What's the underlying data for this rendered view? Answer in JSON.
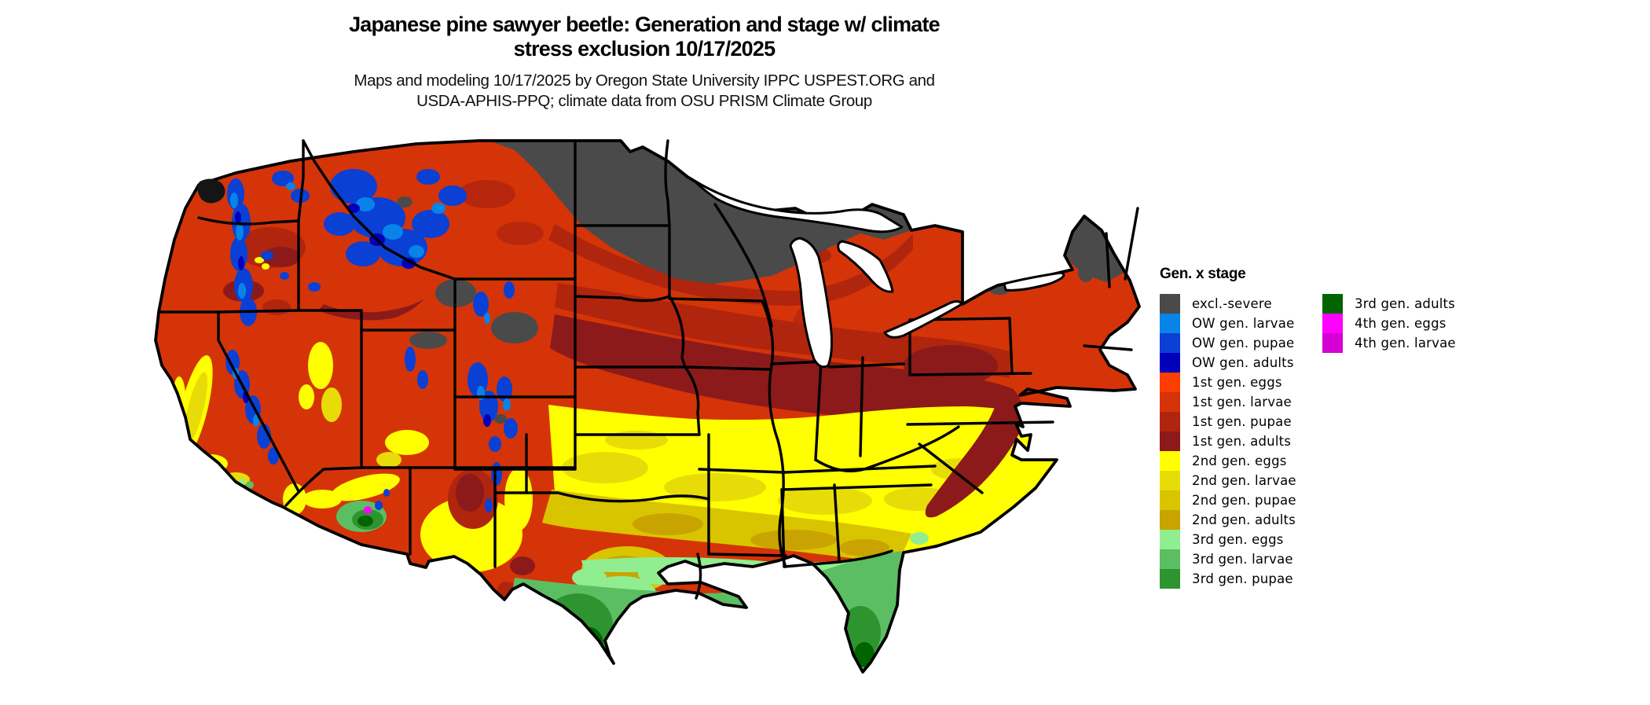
{
  "title": {
    "line1": "Japanese pine sawyer beetle: Generation and stage w/ climate",
    "line2": "stress exclusion 10/17/2025"
  },
  "subtitle": {
    "line1": "Maps and modeling 10/17/2025 by Oregon State University IPPC USPEST.ORG and",
    "line2": "USDA-APHIS-PPQ; climate data from OSU PRISM Climate Group"
  },
  "legend": {
    "heading": "Gen. x stage",
    "col1": [
      {
        "label": "excl.-severe",
        "color": "#4a4a4a"
      },
      {
        "label": "OW gen. larvae",
        "color": "#0884e8"
      },
      {
        "label": "OW gen. pupae",
        "color": "#0b40d4"
      },
      {
        "label": "OW gen. adults",
        "color": "#0000bb"
      },
      {
        "label": "1st gen. eggs",
        "color": "#fc3d00"
      },
      {
        "label": "1st gen. larvae",
        "color": "#d53408"
      },
      {
        "label": "1st gen. pupae",
        "color": "#b0250e"
      },
      {
        "label": "1st gen. adults",
        "color": "#8c1a1a"
      },
      {
        "label": "2nd gen. eggs",
        "color": "#ffff00"
      },
      {
        "label": "2nd gen. larvae",
        "color": "#e8dc08"
      },
      {
        "label": "2nd gen. pupae",
        "color": "#d9c400"
      },
      {
        "label": "2nd gen. adults",
        "color": "#c9a400"
      },
      {
        "label": "3rd gen. eggs",
        "color": "#90ee90"
      },
      {
        "label": "3rd gen. larvae",
        "color": "#5cbe62"
      },
      {
        "label": "3rd gen. pupae",
        "color": "#2e9430"
      }
    ],
    "col2": [
      {
        "label": "3rd gen. adults",
        "color": "#006400"
      },
      {
        "label": "4th gen. eggs",
        "color": "#ff00ff"
      },
      {
        "label": "4th gen. larvae",
        "color": "#d400d4"
      }
    ]
  },
  "palette": {
    "gray": "#4a4a4a",
    "blu1": "#0884e8",
    "blu2": "#0b40d4",
    "blu3": "#0000bb",
    "red0": "#fc3d00",
    "red1": "#d53408",
    "red2": "#b0250e",
    "red3": "#8c1a1a",
    "yel1": "#ffff00",
    "yel2": "#e8dc08",
    "yel3": "#d9c400",
    "yel4": "#c9a400",
    "grn1": "#90ee90",
    "grn2": "#5cbe62",
    "grn3": "#2e9430",
    "grn4": "#006400",
    "mag1": "#ff00ff",
    "mag2": "#d400d4",
    "ink": "#000000",
    "water": "#ffffff"
  },
  "map": {
    "kind": "choropleth raster of continental United States",
    "variable": "Gen. x stage"
  }
}
